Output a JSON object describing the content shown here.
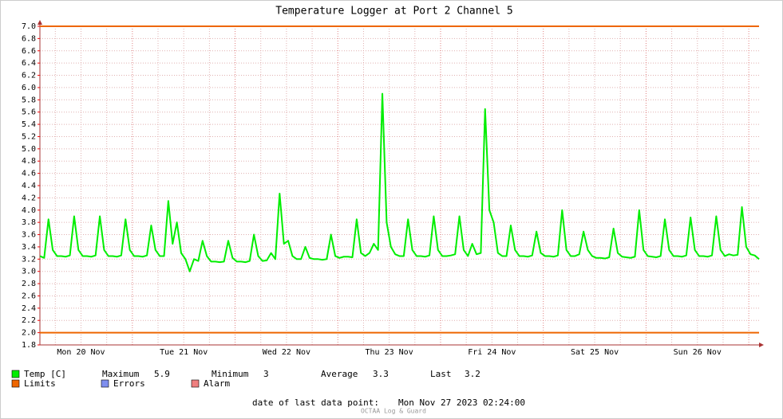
{
  "chart_data": {
    "type": "line",
    "title": "Temperature Logger at Port 2 Channel 5",
    "series": [
      {
        "name": "Temp [C]",
        "color": "#00ee00",
        "values": [
          3.25,
          3.22,
          3.85,
          3.35,
          3.25,
          3.25,
          3.24,
          3.26,
          3.9,
          3.35,
          3.25,
          3.25,
          3.24,
          3.26,
          3.9,
          3.35,
          3.25,
          3.25,
          3.24,
          3.26,
          3.85,
          3.35,
          3.25,
          3.25,
          3.24,
          3.26,
          3.75,
          3.35,
          3.25,
          3.25,
          4.15,
          3.45,
          3.8,
          3.3,
          3.2,
          3.0,
          3.2,
          3.17,
          3.5,
          3.25,
          3.16,
          3.16,
          3.15,
          3.16,
          3.5,
          3.22,
          3.16,
          3.16,
          3.15,
          3.17,
          3.6,
          3.25,
          3.17,
          3.18,
          3.3,
          3.2,
          4.27,
          3.45,
          3.5,
          3.25,
          3.2,
          3.2,
          3.4,
          3.22,
          3.2,
          3.2,
          3.19,
          3.2,
          3.6,
          3.25,
          3.22,
          3.24,
          3.24,
          3.23,
          3.85,
          3.3,
          3.25,
          3.3,
          3.45,
          3.35,
          5.9,
          3.8,
          3.4,
          3.28,
          3.25,
          3.25,
          3.85,
          3.35,
          3.25,
          3.25,
          3.24,
          3.26,
          3.9,
          3.35,
          3.25,
          3.25,
          3.26,
          3.28,
          3.9,
          3.35,
          3.25,
          3.45,
          3.28,
          3.3,
          5.65,
          4.0,
          3.8,
          3.3,
          3.25,
          3.25,
          3.75,
          3.35,
          3.25,
          3.25,
          3.24,
          3.26,
          3.65,
          3.3,
          3.25,
          3.25,
          3.24,
          3.26,
          4.0,
          3.35,
          3.25,
          3.25,
          3.28,
          3.65,
          3.35,
          3.25,
          3.22,
          3.22,
          3.21,
          3.23,
          3.7,
          3.3,
          3.24,
          3.23,
          3.22,
          3.24,
          4.0,
          3.35,
          3.25,
          3.24,
          3.23,
          3.25,
          3.85,
          3.35,
          3.25,
          3.25,
          3.24,
          3.26,
          3.88,
          3.35,
          3.25,
          3.25,
          3.24,
          3.26,
          3.9,
          3.35,
          3.25,
          3.28,
          3.26,
          3.27,
          4.05,
          3.4,
          3.28,
          3.26,
          3.2
        ]
      }
    ],
    "limits": {
      "name": "Limits",
      "color": "#ee6600",
      "values": [
        7,
        2
      ]
    },
    "legend_extra": [
      {
        "name": "Errors",
        "color": "#7f8fef"
      },
      {
        "name": "Alarm",
        "color": "#ef7f7f"
      }
    ],
    "stats": [
      {
        "label": "Maximum",
        "value": 5.9
      },
      {
        "label": "Minimum",
        "value": 3.0
      },
      {
        "label": "Average",
        "value": 3.3
      },
      {
        "label": "Last",
        "value": 3.2
      }
    ],
    "xlim": [
      0,
      168
    ],
    "xticks": [
      {
        "value": 9.6,
        "label": "Mon 20 Nov"
      },
      {
        "value": 33.6,
        "label": "Tue 21 Nov"
      },
      {
        "value": 57.6,
        "label": "Wed 22 Nov"
      },
      {
        "value": 81.6,
        "label": "Thu 23 Nov"
      },
      {
        "value": 105.6,
        "label": "Fri 24 Nov"
      },
      {
        "value": 129.6,
        "label": "Sat 25 Nov"
      },
      {
        "value": 153.6,
        "label": "Sun 26 Nov"
      }
    ],
    "ylim": [
      1.8,
      7.0
    ],
    "yticks": [
      1.8,
      {
        "value": 2,
        "label": "2.0"
      },
      2.2,
      2.4,
      2.6,
      2.8,
      {
        "value": 3,
        "label": "3.0"
      },
      3.2,
      3.4,
      3.6,
      3.8,
      {
        "value": 4,
        "label": "4.0"
      },
      4.2,
      4.4,
      4.6,
      4.8,
      {
        "value": 5,
        "label": "5.0"
      },
      5.2,
      5.4,
      5.6,
      5.8,
      {
        "value": 6,
        "label": "6.0"
      },
      6.2,
      6.4,
      6.6,
      6.8,
      {
        "value": 7,
        "label": "7.0"
      }
    ],
    "grid": true,
    "footer_label": "date of last data point:",
    "footer_value": "Mon Nov 27 2023 02:24:00",
    "watermark": "OCTAA Log & Guard"
  }
}
